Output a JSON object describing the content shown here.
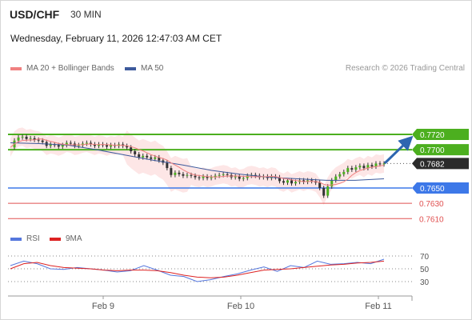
{
  "header": {
    "symbol": "USD/CHF",
    "timeframe": "30 MIN",
    "datetime": "Wednesday, February 11, 2026 12:47:03 AM CET"
  },
  "legend": {
    "ma20_label": "MA 20 + Bollinger Bands",
    "ma20_color": "#f08080",
    "ma50_label": "MA 50",
    "ma50_color": "#3d5a9c",
    "credit": "Research © 2026 Trading Central"
  },
  "price_levels": [
    {
      "label": "0.7720",
      "kind": "resistance",
      "color": "#4caf1f"
    },
    {
      "label": "0.7700",
      "kind": "resistance",
      "color": "#4caf1f"
    },
    {
      "label": "0.7682",
      "kind": "last",
      "color": "#2b2b2b"
    },
    {
      "label": "0.7650",
      "kind": "pivot",
      "color": "#3d78e8"
    },
    {
      "label": "0.7630",
      "kind": "support",
      "color": "#e05050"
    },
    {
      "label": "0.7610",
      "kind": "support",
      "color": "#e05050"
    }
  ],
  "rsi_legend": {
    "rsi_label": "RSI",
    "rsi_color": "#5577dd",
    "ma_label": "9MA",
    "ma_color": "#dd2222"
  },
  "rsi_levels": [
    "70",
    "50",
    "30"
  ],
  "xaxis": [
    "Feb 9",
    "Feb 10",
    "Feb 11"
  ],
  "chart_data": {
    "type": "line",
    "price_close": [
      0.7703,
      0.7712,
      0.7716,
      0.7717,
      0.7714,
      0.7715,
      0.7713,
      0.7712,
      0.771,
      0.7705,
      0.7707,
      0.7706,
      0.7704,
      0.7706,
      0.7709,
      0.7708,
      0.7705,
      0.7706,
      0.7708,
      0.7709,
      0.7707,
      0.7705,
      0.7707,
      0.7706,
      0.7704,
      0.7706,
      0.7705,
      0.7707,
      0.7705,
      0.7703,
      0.7698,
      0.7694,
      0.769,
      0.7692,
      0.769,
      0.7688,
      0.769,
      0.7686,
      0.7683,
      0.7676,
      0.7667,
      0.767,
      0.7668,
      0.7666,
      0.7667,
      0.7666,
      0.7664,
      0.7663,
      0.7665,
      0.7663,
      0.7664,
      0.7666,
      0.7667,
      0.7668,
      0.7667,
      0.7664,
      0.7665,
      0.7662,
      0.7663,
      0.7666,
      0.7667,
      0.7666,
      0.7664,
      0.7665,
      0.7663,
      0.7665,
      0.7664,
      0.7659,
      0.7657,
      0.766,
      0.7656,
      0.7658,
      0.766,
      0.7658,
      0.766,
      0.7659,
      0.7657,
      0.765,
      0.764,
      0.7652,
      0.766,
      0.7665,
      0.7668,
      0.7671,
      0.7676,
      0.7674,
      0.7677,
      0.7679,
      0.7676,
      0.768,
      0.7678,
      0.7682,
      0.7681,
      0.7682
    ],
    "ma50": [
      0.7709,
      0.7708,
      0.7706,
      0.77,
      0.7693,
      0.7686,
      0.768,
      0.7673,
      0.7668,
      0.7664,
      0.7662,
      0.766,
      0.766,
      0.7662
    ],
    "rsi": [
      55,
      62,
      58,
      50,
      49,
      52,
      50,
      48,
      45,
      47,
      55,
      48,
      40,
      38,
      30,
      33,
      38,
      42,
      48,
      53,
      46,
      55,
      52,
      62,
      57,
      58,
      60,
      58,
      65
    ],
    "rsi_ma": [
      50,
      58,
      60,
      55,
      52,
      51,
      50,
      48,
      47,
      48,
      48,
      47,
      44,
      40,
      37,
      36,
      37,
      40,
      44,
      48,
      49,
      50,
      52,
      54,
      56,
      57,
      59,
      60,
      62
    ],
    "levels": [
      0.772,
      0.77,
      0.7682,
      0.765,
      0.763,
      0.761
    ],
    "xticks": [
      "Feb 9",
      "Feb 10",
      "Feb 11"
    ],
    "rsi_ticks": [
      70,
      50,
      30
    ]
  }
}
